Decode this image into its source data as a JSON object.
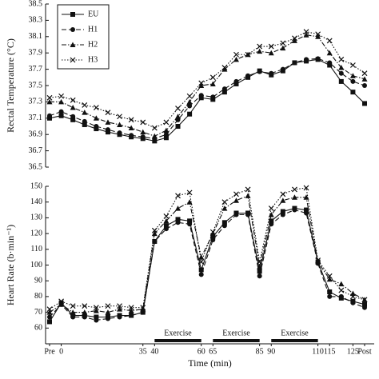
{
  "chart_data": [
    {
      "type": "line",
      "y_label": "Rectal Temperature (°C)",
      "ylim": [
        36.5,
        38.5
      ],
      "yticks": [
        36.5,
        36.7,
        36.9,
        37.1,
        37.3,
        37.5,
        37.7,
        37.9,
        38.1,
        38.3,
        38.5
      ],
      "legend": "upper left",
      "series": [
        {
          "name": "EU",
          "color": "#111111",
          "marker": "square",
          "dash": "solid",
          "values": [
            37.1,
            37.13,
            37.08,
            37.02,
            36.97,
            36.93,
            36.9,
            36.87,
            36.85,
            36.82,
            36.86,
            37.0,
            37.15,
            37.35,
            37.33,
            37.42,
            37.52,
            37.6,
            37.68,
            37.63,
            37.68,
            37.78,
            37.8,
            37.82,
            37.75,
            37.55,
            37.42,
            37.28
          ]
        },
        {
          "name": "H1",
          "color": "#111111",
          "marker": "circle",
          "dash": "dashed",
          "values": [
            37.13,
            37.18,
            37.12,
            37.06,
            37.0,
            36.96,
            36.92,
            36.89,
            36.87,
            36.85,
            36.9,
            37.08,
            37.25,
            37.38,
            37.36,
            37.46,
            37.55,
            37.62,
            37.67,
            37.65,
            37.7,
            37.78,
            37.82,
            37.83,
            37.78,
            37.65,
            37.55,
            37.5
          ]
        },
        {
          "name": "H2",
          "color": "#111111",
          "marker": "triangle",
          "dash": "dashdot",
          "values": [
            37.3,
            37.3,
            37.23,
            37.17,
            37.1,
            37.05,
            37.02,
            36.98,
            36.93,
            36.88,
            36.95,
            37.12,
            37.3,
            37.5,
            37.52,
            37.7,
            37.82,
            37.88,
            37.92,
            37.9,
            37.96,
            38.05,
            38.12,
            38.1,
            37.9,
            37.72,
            37.62,
            37.58
          ]
        },
        {
          "name": "H3",
          "color": "#111111",
          "marker": "x",
          "dash": "dotted",
          "values": [
            37.35,
            37.37,
            37.32,
            37.26,
            37.23,
            37.17,
            37.12,
            37.08,
            37.05,
            36.98,
            37.05,
            37.22,
            37.37,
            37.53,
            37.6,
            37.72,
            37.88,
            37.88,
            37.98,
            37.98,
            38.02,
            38.08,
            38.16,
            38.13,
            38.05,
            37.82,
            37.75,
            37.65
          ]
        }
      ]
    },
    {
      "type": "line",
      "x_label": "Time (min)",
      "y_label": "Heart Rate (b·min⁻¹)",
      "categories": [
        "Pre",
        "0",
        null,
        null,
        null,
        null,
        null,
        null,
        "35",
        "40",
        null,
        null,
        null,
        "60",
        "65",
        null,
        null,
        null,
        "85",
        "90",
        null,
        null,
        null,
        "110",
        "115",
        null,
        "125",
        "Post"
      ],
      "ylim": [
        50,
        150
      ],
      "yticks": [
        60,
        70,
        80,
        90,
        100,
        110,
        120,
        130,
        140,
        150
      ],
      "annotations": [
        {
          "text": "Exercise",
          "from": "40",
          "to": "60"
        },
        {
          "text": "Exercise",
          "from": "65",
          "to": "85"
        },
        {
          "text": "Exercise",
          "from": "90",
          "to": "110"
        }
      ],
      "series": [
        {
          "name": "EU",
          "color": "#111111",
          "marker": "square",
          "dash": "solid",
          "values": [
            64,
            76,
            68,
            68,
            67,
            67,
            68,
            68,
            70,
            115,
            125,
            129,
            128,
            97,
            118,
            127,
            133,
            133,
            96,
            128,
            134,
            136,
            135,
            102,
            83,
            79,
            77,
            75
          ]
        },
        {
          "name": "H1",
          "color": "#111111",
          "marker": "circle",
          "dash": "dashed",
          "values": [
            67,
            75,
            67,
            67,
            65,
            66,
            67,
            68,
            70,
            115,
            123,
            127,
            126,
            94,
            116,
            125,
            132,
            132,
            93,
            126,
            132,
            135,
            133,
            101,
            80,
            80,
            76,
            73
          ]
        },
        {
          "name": "H2",
          "color": "#111111",
          "marker": "triangle",
          "dash": "dashdot",
          "values": [
            70,
            75,
            70,
            70,
            71,
            70,
            72,
            71,
            72,
            120,
            128,
            136,
            140,
            105,
            120,
            136,
            141,
            144,
            99,
            132,
            141,
            143,
            143,
            102,
            91,
            88,
            82,
            78
          ]
        },
        {
          "name": "H3",
          "color": "#111111",
          "marker": "x",
          "dash": "dotted",
          "values": [
            72,
            77,
            74,
            74,
            73,
            74,
            74,
            73,
            73,
            122,
            131,
            144,
            146,
            102,
            121,
            140,
            145,
            148,
            102,
            136,
            145,
            148,
            149,
            103,
            93,
            84,
            80,
            78
          ]
        }
      ]
    }
  ]
}
